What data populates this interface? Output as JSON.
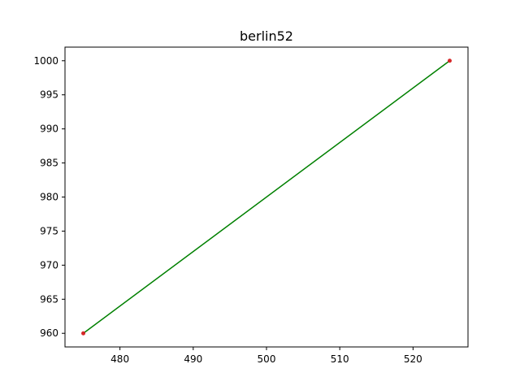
{
  "chart_data": {
    "type": "line",
    "title": "berlin52",
    "xlabel": "",
    "ylabel": "",
    "xlim": [
      472.5,
      527.5
    ],
    "ylim": [
      958,
      1002
    ],
    "xticks": [
      480,
      490,
      500,
      510,
      520
    ],
    "yticks": [
      960,
      965,
      970,
      975,
      980,
      985,
      990,
      995,
      1000
    ],
    "grid": false,
    "series": [
      {
        "points": [
          {
            "x": 475,
            "y": 960
          },
          {
            "x": 525,
            "y": 1000
          }
        ],
        "line_color": "#008000",
        "marker_color": "#d62728"
      }
    ]
  }
}
